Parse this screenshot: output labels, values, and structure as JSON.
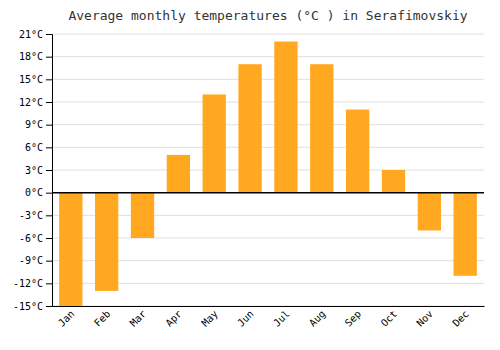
{
  "chart_data": {
    "type": "bar",
    "title": "Average monthly temperatures (°C ) in Serafimovskiy",
    "categories": [
      "Jan",
      "Feb",
      "Mar",
      "Apr",
      "May",
      "Jun",
      "Jul",
      "Aug",
      "Sep",
      "Oct",
      "Nov",
      "Dec"
    ],
    "values": [
      -15,
      -13,
      -6,
      5,
      13,
      17,
      20,
      17,
      11,
      3,
      -5,
      -11
    ],
    "color": "#FFA820",
    "ylim": [
      -15,
      21
    ],
    "yticks": [
      {
        "value": -15,
        "label": "-15°C"
      },
      {
        "value": -12,
        "label": "-12°C"
      },
      {
        "value": -9,
        "label": "-9°C"
      },
      {
        "value": -6,
        "label": "-6°C"
      },
      {
        "value": -3,
        "label": "-3°C"
      },
      {
        "value": 0,
        "label": "0°C"
      },
      {
        "value": 3,
        "label": "3°C"
      },
      {
        "value": 6,
        "label": "6°C"
      },
      {
        "value": 9,
        "label": "9°C"
      },
      {
        "value": 12,
        "label": "12°C"
      },
      {
        "value": 15,
        "label": "15°C"
      },
      {
        "value": 18,
        "label": "18°C"
      },
      {
        "value": 21,
        "label": "21°C"
      }
    ],
    "grid": true
  }
}
